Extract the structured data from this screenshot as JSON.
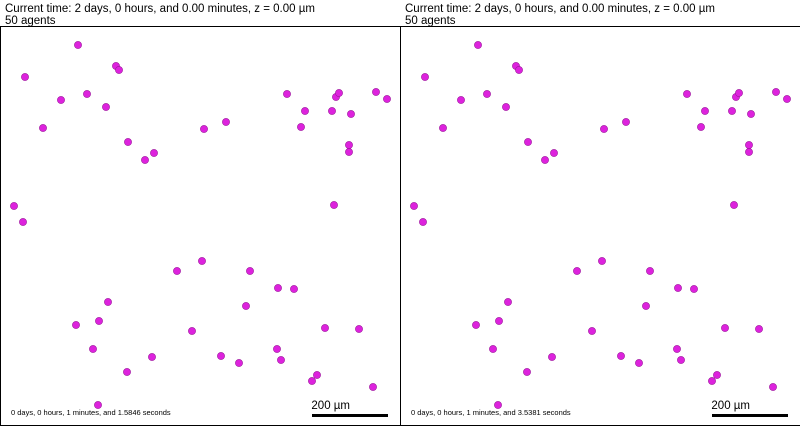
{
  "panels": [
    {
      "time_label": "Current time: 2 days, 0 hours, and 0.00 minutes, z = 0.00 µm",
      "agents_label": "50 agents",
      "elapsed_label": "0 days, 0 hours, 1 minutes, and 1.5846 seconds",
      "scale_label": "200 µm"
    },
    {
      "time_label": "Current time: 2 days, 0 hours, and 0.00 minutes, z = 0.00 µm",
      "agents_label": "50 agents",
      "elapsed_label": "0 days, 0 hours, 1 minutes, and 3.5381 seconds",
      "scale_label": "200 µm"
    }
  ],
  "agent_color": "#dd22dd",
  "agent_stroke": "#9a159a",
  "agent_count": 50,
  "chart_data": {
    "type": "scatter",
    "title": "",
    "xlabel": "",
    "ylabel": "",
    "x": [
      24,
      77,
      42,
      60,
      86,
      105,
      115,
      118,
      127,
      144,
      153,
      203,
      225,
      286,
      300,
      304,
      331,
      335,
      338,
      348,
      348,
      350,
      375,
      386,
      13,
      22,
      333,
      176,
      201,
      249,
      277,
      293,
      245,
      107,
      75,
      98,
      191,
      92,
      126,
      151,
      220,
      238,
      276,
      280,
      324,
      358,
      316,
      311,
      372,
      97
    ],
    "y": [
      76,
      44,
      127,
      99,
      93,
      106,
      65,
      69,
      141,
      159,
      152,
      128,
      121,
      93,
      126,
      110,
      110,
      96,
      92,
      144,
      151,
      113,
      91,
      98,
      205,
      221,
      204,
      270,
      260,
      270,
      287,
      288,
      305,
      301,
      324,
      320,
      330,
      348,
      371,
      356,
      355,
      362,
      348,
      359,
      327,
      328,
      374,
      380,
      386,
      404
    ]
  }
}
